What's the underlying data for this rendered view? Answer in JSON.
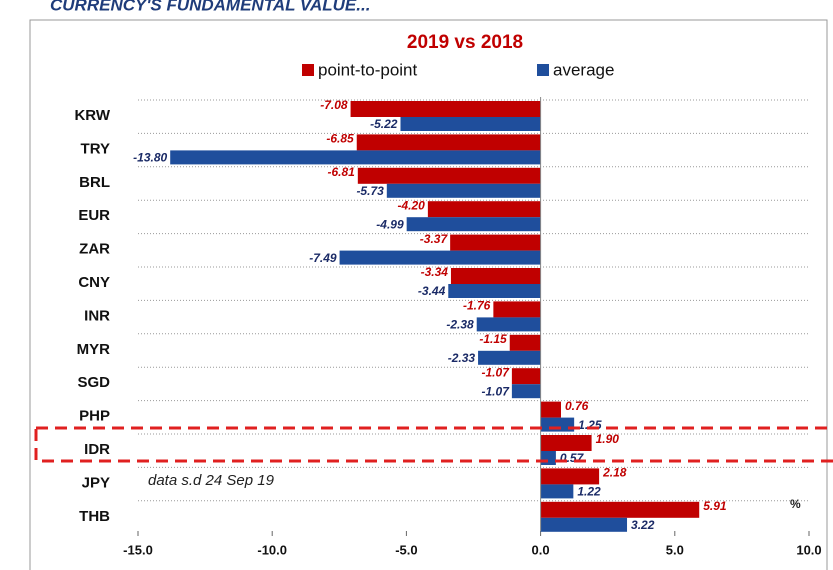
{
  "chart_data": {
    "type": "bar",
    "orientation": "horizontal",
    "caption": "CURRENCY'S FUNDAMENTAL VALUE...",
    "title": "2019 vs 2018",
    "categories": [
      "KRW",
      "TRY",
      "BRL",
      "EUR",
      "ZAR",
      "CNY",
      "INR",
      "MYR",
      "SGD",
      "PHP",
      "IDR",
      "JPY",
      "THB"
    ],
    "series": [
      {
        "name": "point-to-point",
        "color": "#c00000",
        "values": [
          -7.08,
          -6.85,
          -6.81,
          -4.2,
          -3.37,
          -3.34,
          -1.76,
          -1.15,
          -1.07,
          0.76,
          1.9,
          2.18,
          5.91
        ],
        "value_labels": [
          "-7.08",
          "-6.85",
          "-6.81",
          "-4.20",
          "-3.37",
          "-3.34",
          "-1.76",
          "-1.15",
          "-1.07",
          "0.76",
          "1.90",
          "2.18",
          "5.91"
        ]
      },
      {
        "name": "average",
        "color": "#1f4e9c",
        "values": [
          -5.22,
          -13.8,
          -5.73,
          -4.99,
          -7.49,
          -3.44,
          -2.38,
          -2.33,
          -1.07,
          1.25,
          0.57,
          1.22,
          3.22
        ],
        "value_labels": [
          "-5.22",
          "-13.80",
          "-5.73",
          "-4.99",
          "-7.49",
          "-3.44",
          "-2.38",
          "-2.33",
          "-1.07",
          "1.25",
          "0.57",
          "1.22",
          "3.22"
        ]
      }
    ],
    "xlim": [
      -15,
      10
    ],
    "xticks": [
      {
        "value": -15,
        "label": "-15.0"
      },
      {
        "value": -10,
        "label": "-10.0"
      },
      {
        "value": -5,
        "label": "-5.0"
      },
      {
        "value": 0,
        "label": "0.0"
      },
      {
        "value": 5,
        "label": "5.0"
      },
      {
        "value": 10,
        "label": "10.0"
      }
    ],
    "annotations": [
      "data s.d 24 Sep 19",
      "%"
    ],
    "legend": "top"
  }
}
